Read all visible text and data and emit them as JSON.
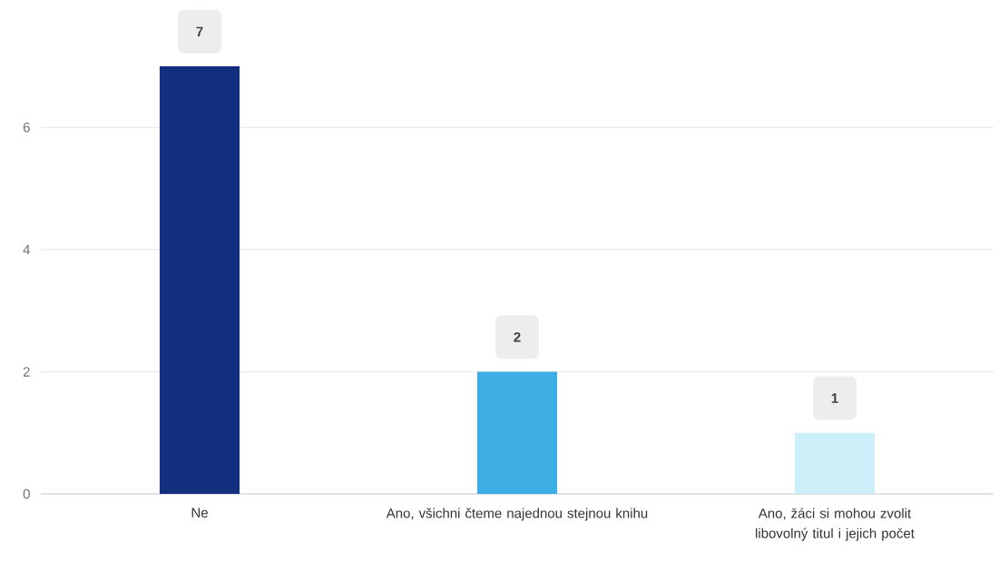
{
  "chart_data": {
    "type": "bar",
    "categories": [
      "Ne",
      "Ano, všichni čteme najednou stejnou knihu",
      "Ano, žáci si mohou zvolit libovolný titul i jejich počet"
    ],
    "values": [
      7,
      2,
      1
    ],
    "colors": [
      "#132f7f",
      "#3caee4",
      "#cdeff9"
    ],
    "ylim": [
      0,
      7
    ],
    "yticks": [
      0,
      2,
      4,
      6
    ],
    "grid": "y",
    "data_labels": true
  }
}
